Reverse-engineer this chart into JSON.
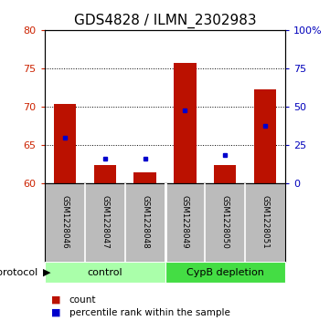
{
  "title": "GDS4828 / ILMN_2302983",
  "samples": [
    "GSM1228046",
    "GSM1228047",
    "GSM1228048",
    "GSM1228049",
    "GSM1228050",
    "GSM1228051"
  ],
  "count_values": [
    70.4,
    62.4,
    61.5,
    75.7,
    62.4,
    72.3
  ],
  "percentile_values": [
    66.0,
    63.3,
    63.3,
    69.5,
    63.7,
    67.5
  ],
  "ymin": 60,
  "ymax": 80,
  "y_ticks": [
    60,
    65,
    70,
    75,
    80
  ],
  "y_right_ticks": [
    0,
    25,
    50,
    75,
    100
  ],
  "y_right_tick_labels": [
    "0",
    "25",
    "50",
    "75",
    "100%"
  ],
  "grid_lines": [
    65,
    70,
    75
  ],
  "bar_color": "#bb1100",
  "square_color": "#0000cc",
  "bar_bottom": 60,
  "control_color": "#aaffaa",
  "cypb_color": "#44dd44",
  "label_bg": "#bbbbbb",
  "protocol_label": "protocol",
  "legend_count_label": "count",
  "legend_percentile_label": "percentile rank within the sample",
  "background_color": "#ffffff",
  "left_tick_color": "#cc2200",
  "right_tick_color": "#0000bb",
  "tick_fontsize": 8,
  "title_fontsize": 11
}
